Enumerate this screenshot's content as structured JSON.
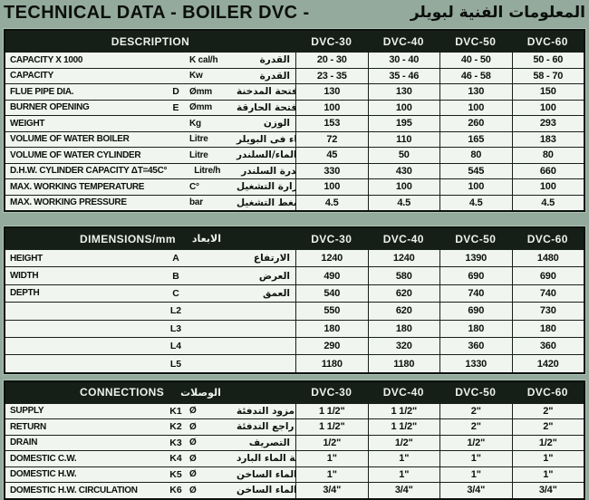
{
  "title": {
    "latin": "TECHNICAL DATA - BOILER  DVC -",
    "arabic": "المعلومات الفنية لبويلر"
  },
  "columns": [
    "DVC-30",
    "DVC-40",
    "DVC-50",
    "DVC-60"
  ],
  "colors": {
    "page_background": "#94aa9d",
    "table_background": "#f1f5f0",
    "header_background": "#161e18",
    "header_text": "#ecf2ec",
    "border": "#181f19",
    "text": "#0d120e"
  },
  "sections": [
    {
      "id": "description",
      "header": {
        "label": "DESCRIPTION",
        "arabic": ""
      },
      "rows": [
        {
          "label": "CAPACITY X 1000",
          "sym": "",
          "unit": "K cal/h",
          "ar": "القدرة",
          "values": [
            "20 - 30",
            "30 - 40",
            "40 - 50",
            "50 - 60"
          ]
        },
        {
          "label": "CAPACITY",
          "sym": "",
          "unit": "Kw",
          "ar": "القدرة",
          "values": [
            "23 - 35",
            "35 - 46",
            "46 - 58",
            "58 - 70"
          ]
        },
        {
          "label": "FLUE PIPE DIA.",
          "sym": "D",
          "unit": "Ømm",
          "ar": "قطر فتحة المدخنة",
          "values": [
            "130",
            "130",
            "130",
            "150"
          ]
        },
        {
          "label": "BURNER OPENING",
          "sym": "E",
          "unit": "Ømm",
          "ar": "فتحة الحارقة",
          "values": [
            "100",
            "100",
            "100",
            "100"
          ]
        },
        {
          "label": "WEIGHT",
          "sym": "",
          "unit": "Kg",
          "ar": "الوزن",
          "values": [
            "153",
            "195",
            "260",
            "293"
          ]
        },
        {
          "label": "VOLUME OF WATER BOILER",
          "sym": "",
          "unit": "Litre",
          "ar": "كمية الماء فى البويلر",
          "values": [
            "72",
            "110",
            "165",
            "183"
          ]
        },
        {
          "label": "VOLUME OF WATER CYLINDER",
          "sym": "",
          "unit": "Litre",
          "ar": "كمية الماء/السلندر",
          "values": [
            "45",
            "50",
            "80",
            "80"
          ]
        },
        {
          "label": "D.H.W. CYLINDER CAPACITY ΔT=45C°",
          "sym": "",
          "unit": "Litre/h",
          "ar": "قدرة السلندر",
          "values": [
            "330",
            "430",
            "545",
            "660"
          ]
        },
        {
          "label": "MAX. WORKING TEMPERATURE",
          "sym": "",
          "unit": "C°",
          "ar": "حرارة التشغيل",
          "values": [
            "100",
            "100",
            "100",
            "100"
          ]
        },
        {
          "label": "MAX. WORKING PRESSURE",
          "sym": "",
          "unit": "bar",
          "ar": "ضغط التشغيل",
          "values": [
            "4.5",
            "4.5",
            "4.5",
            "4.5"
          ]
        }
      ]
    },
    {
      "id": "dimensions",
      "header": {
        "label": "DIMENSIONS/mm",
        "arabic": "الابعاد"
      },
      "rows": [
        {
          "label": "HEIGHT",
          "sym": "A",
          "unit": "",
          "ar": "الارتفاع",
          "values": [
            "1240",
            "1240",
            "1390",
            "1480"
          ]
        },
        {
          "label": "WIDTH",
          "sym": "B",
          "unit": "",
          "ar": "العرض",
          "values": [
            "490",
            "580",
            "690",
            "690"
          ]
        },
        {
          "label": "DEPTH",
          "sym": "C",
          "unit": "",
          "ar": "العمق",
          "values": [
            "540",
            "620",
            "740",
            "740"
          ]
        },
        {
          "label": "",
          "sym": "L2",
          "unit": "",
          "ar": "",
          "values": [
            "550",
            "620",
            "690",
            "730"
          ]
        },
        {
          "label": "",
          "sym": "L3",
          "unit": "",
          "ar": "",
          "values": [
            "180",
            "180",
            "180",
            "180"
          ]
        },
        {
          "label": "",
          "sym": "L4",
          "unit": "",
          "ar": "",
          "values": [
            "290",
            "320",
            "360",
            "360"
          ]
        },
        {
          "label": "",
          "sym": "L5",
          "unit": "",
          "ar": "",
          "values": [
            "1180",
            "1180",
            "1330",
            "1420"
          ]
        }
      ]
    },
    {
      "id": "connections",
      "header": {
        "label": "CONNECTIONS",
        "arabic": "الوصلات"
      },
      "rows": [
        {
          "label": "SUPPLY",
          "sym": "K1",
          "unit": "Ø",
          "ar": "مزود التدفئة",
          "values": [
            "1 1/2\"",
            "1 1/2\"",
            "2\"",
            "2\""
          ]
        },
        {
          "label": "RETURN",
          "sym": "K2",
          "unit": "Ø",
          "ar": "راجع التدفئة",
          "values": [
            "1 1/2\"",
            "1 1/2\"",
            "2\"",
            "2\""
          ]
        },
        {
          "label": "DRAIN",
          "sym": "K3",
          "unit": "Ø",
          "ar": "التصريف",
          "values": [
            "1/2\"",
            "1/2\"",
            "1/2\"",
            "1/2\""
          ]
        },
        {
          "label": "DOMESTIC C.W.",
          "sym": "K4",
          "unit": "Ø",
          "ar": "مغذي شبكة الماء البارد",
          "values": [
            "1\"",
            "1\"",
            "1\"",
            "1\""
          ]
        },
        {
          "label": "DOMESTIC H.W.",
          "sym": "K5",
          "unit": "Ø",
          "ar": "مغذي شبكة الماء الساخن",
          "values": [
            "1\"",
            "1\"",
            "1\"",
            "1\""
          ]
        },
        {
          "label": "DOMESTIC H.W. CIRCULATION",
          "sym": "K6",
          "unit": "Ø",
          "ar": "راجع الماء الساخن",
          "values": [
            "3/4\"",
            "3/4\"",
            "3/4\"",
            "3/4\""
          ]
        }
      ]
    }
  ]
}
